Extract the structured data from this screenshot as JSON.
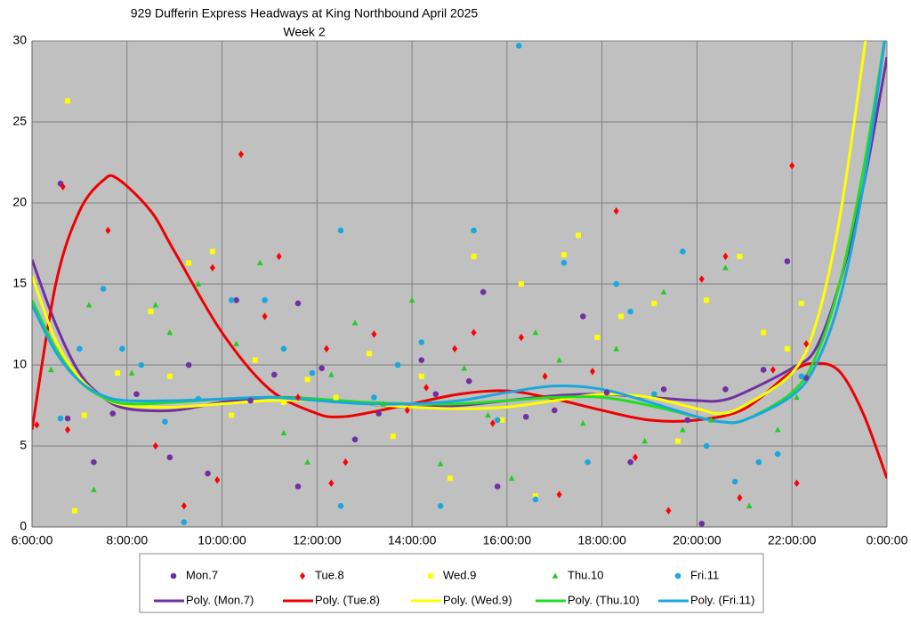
{
  "chart_data": {
    "type": "scatter",
    "title": "929 Dufferin Express Headways at King Northbound April 2025",
    "subtitle": "Week 2",
    "xlim": [
      6,
      24
    ],
    "xticks": [
      {
        "value": 6,
        "label": "6:00:00"
      },
      {
        "value": 8,
        "label": "8:00:00"
      },
      {
        "value": 10,
        "label": "10:00:00"
      },
      {
        "value": 12,
        "label": "12:00:00"
      },
      {
        "value": 14,
        "label": "14:00:00"
      },
      {
        "value": 16,
        "label": "16:00:00"
      },
      {
        "value": 18,
        "label": "18:00:00"
      },
      {
        "value": 20,
        "label": "20:00:00"
      },
      {
        "value": 22,
        "label": "22:00:00"
      },
      {
        "value": 24,
        "label": "0:00:00"
      }
    ],
    "ylim": [
      0,
      30
    ],
    "yticks": [
      0,
      5,
      10,
      15,
      20,
      25,
      30
    ],
    "grid": true,
    "legend": "bottom",
    "series": [
      {
        "name": "Mon.7",
        "color": "#7030a0",
        "marker": "circle",
        "x": [
          6.6,
          6.75,
          7.3,
          7.7,
          8.2,
          8.9,
          9.3,
          9.7,
          10.3,
          10.6,
          11.1,
          11.6,
          11.6,
          12.1,
          12.8,
          13.3,
          14.2,
          14.5,
          15.2,
          15.5,
          15.8,
          16.4,
          17,
          17.6,
          18.1,
          18.6,
          19.3,
          19.8,
          20.1,
          20.6,
          21.4,
          21.9,
          22.3
        ],
        "values": [
          21.2,
          6.7,
          4,
          7,
          8.2,
          4.3,
          10,
          3.3,
          14,
          7.8,
          9.4,
          2.5,
          13.8,
          9.8,
          5.4,
          7,
          10.3,
          8.2,
          9,
          14.5,
          2.5,
          6.8,
          7.2,
          13,
          8.3,
          4,
          8.5,
          6.6,
          0.2,
          8.5,
          9.7,
          16.4,
          9.2
        ]
      },
      {
        "name": "Tue.8",
        "color": "#ff0000",
        "marker": "diamond",
        "x": [
          6.1,
          6.65,
          6.75,
          7.6,
          8.6,
          9.2,
          9.8,
          9.9,
          10.4,
          10.9,
          11.2,
          11.6,
          12.2,
          12.3,
          12.6,
          13.2,
          13.9,
          14.3,
          14.9,
          15.3,
          15.7,
          16.3,
          16.8,
          17.1,
          17.8,
          18.3,
          18.7,
          19.4,
          20.1,
          20.6,
          20.9,
          21.6,
          22,
          22.1,
          22.3
        ],
        "values": [
          6.3,
          21,
          6,
          18.3,
          5,
          1.3,
          16,
          2.9,
          23,
          13,
          16.7,
          8,
          11,
          2.7,
          4,
          11.9,
          7.2,
          8.6,
          11,
          12,
          6.4,
          11.7,
          9.3,
          2,
          9.6,
          19.5,
          4.3,
          1,
          15.3,
          16.7,
          1.8,
          9.7,
          22.3,
          2.7,
          11.3
        ]
      },
      {
        "name": "Wed.9",
        "color": "#ffff00",
        "marker": "square",
        "x": [
          6.75,
          6.9,
          7.1,
          7.8,
          8.5,
          8.9,
          9.3,
          9.8,
          10.2,
          10.7,
          11.3,
          11.8,
          12.4,
          13.1,
          13.6,
          14.2,
          14.8,
          15.3,
          15.9,
          16.3,
          16.6,
          17.2,
          17.5,
          17.9,
          18.4,
          19.1,
          19.6,
          20.2,
          20.9,
          21.4,
          21.9,
          22.2
        ],
        "values": [
          26.3,
          1,
          6.9,
          9.5,
          13.3,
          9.3,
          16.3,
          17,
          6.9,
          10.3,
          7.7,
          9.1,
          8,
          10.7,
          5.6,
          9.3,
          3,
          16.7,
          6.6,
          15,
          1.9,
          16.8,
          18,
          11.7,
          13,
          13.8,
          5.3,
          14,
          16.7,
          12,
          11,
          13.8
        ]
      },
      {
        "name": "Thu.10",
        "color": "#22cc22",
        "marker": "triangle",
        "x": [
          6.4,
          7.2,
          7.3,
          8.1,
          8.6,
          8.9,
          9.5,
          10.3,
          10.8,
          11.3,
          11.8,
          12.3,
          12.8,
          13.4,
          14,
          14.6,
          15.1,
          15.6,
          16.1,
          16.6,
          17.1,
          17.6,
          18.3,
          18.9,
          19.3,
          19.7,
          20.3,
          20.6,
          21.1,
          21.7,
          22.1
        ],
        "values": [
          9.7,
          13.7,
          2.3,
          9.5,
          13.7,
          12,
          15,
          11.3,
          16.3,
          5.8,
          4,
          9.4,
          12.6,
          7.6,
          14,
          3.9,
          9.8,
          6.9,
          3,
          12,
          10.3,
          6.4,
          11,
          5.3,
          14.5,
          6,
          6.6,
          16,
          1.3,
          6,
          8
        ]
      },
      {
        "name": "Fri.11",
        "color": "#1aa7e0",
        "marker": "circle",
        "x": [
          6.6,
          7,
          7.5,
          7.9,
          8.3,
          8.8,
          9.2,
          9.5,
          10.2,
          10.9,
          11.3,
          11.9,
          12.5,
          12.5,
          13.2,
          13.7,
          14.2,
          14.6,
          15.3,
          15.8,
          16.25,
          16.6,
          17.2,
          17.7,
          18.3,
          18.6,
          19.1,
          19.7,
          20.2,
          20.8,
          21.3,
          21.7,
          22.2
        ],
        "values": [
          6.7,
          11,
          14.7,
          11,
          10,
          6.5,
          0.3,
          7.9,
          14,
          14,
          11,
          9.5,
          18.3,
          1.3,
          8,
          10,
          11.4,
          1.3,
          18.3,
          6.6,
          29.7,
          1.7,
          16.3,
          4,
          15,
          13.3,
          8.2,
          17,
          5,
          2.8,
          4,
          4.5,
          9.3
        ]
      }
    ],
    "trendlines": [
      {
        "name": "Poly. (Mon.7)",
        "color": "#7030a0",
        "x": [
          6,
          6.5,
          7,
          7.5,
          8,
          9,
          10,
          11,
          12,
          13,
          14,
          15,
          16,
          17,
          18,
          19,
          20,
          20.5,
          21,
          22,
          22.5,
          23,
          23.5,
          24
        ],
        "values": [
          16.5,
          12.5,
          9.5,
          8,
          7.3,
          7.2,
          7.7,
          8,
          7.9,
          7.6,
          7.4,
          7.5,
          7.8,
          8.1,
          8.2,
          8,
          7.8,
          7.8,
          8.3,
          9.8,
          11,
          15,
          21,
          29
        ]
      },
      {
        "name": "Poly. (Tue.8)",
        "color": "#ee0000",
        "x": [
          6,
          6.5,
          7,
          7.5,
          7.8,
          8.5,
          9,
          10,
          11,
          12,
          12.5,
          13,
          14,
          15,
          16,
          17,
          18,
          19,
          20,
          21,
          22,
          22.5,
          23,
          23.5,
          24
        ],
        "values": [
          6,
          15,
          19.5,
          21.4,
          21.5,
          19.5,
          17,
          12,
          8.5,
          7,
          6.8,
          7,
          7.6,
          8.2,
          8.4,
          7.9,
          7.2,
          6.6,
          6.6,
          7.3,
          9.6,
          10.1,
          9.6,
          7,
          3
        ]
      },
      {
        "name": "Poly. (Wed.9)",
        "color": "#ffff00",
        "x": [
          6,
          6.5,
          7,
          7.5,
          8,
          9,
          10,
          11,
          12,
          13,
          14,
          15,
          16,
          17,
          18,
          19,
          20,
          20.5,
          21,
          22,
          22.5,
          23,
          23.5,
          24
        ],
        "values": [
          15.5,
          11.5,
          9.2,
          8,
          7.5,
          7.4,
          7.6,
          7.8,
          7.8,
          7.6,
          7.4,
          7.3,
          7.4,
          7.8,
          8.2,
          8,
          7.3,
          7,
          7.5,
          9.5,
          12.5,
          19,
          29,
          40
        ]
      },
      {
        "name": "Poly. (Thu.10)",
        "color": "#22dd22",
        "x": [
          6,
          6.5,
          7,
          7.5,
          8,
          9,
          10,
          11,
          12,
          13,
          14,
          15,
          16,
          17,
          18,
          19,
          20,
          20.5,
          21,
          22,
          22.5,
          23,
          23.5,
          24
        ],
        "values": [
          14,
          11,
          9,
          8,
          7.6,
          7.7,
          7.9,
          8,
          7.9,
          7.7,
          7.6,
          7.6,
          7.8,
          8,
          8,
          7.5,
          6.8,
          6.5,
          6.6,
          8.3,
          10.5,
          15,
          22,
          31
        ]
      },
      {
        "name": "Poly. (Fri.11)",
        "color": "#1aa7e0",
        "x": [
          6,
          6.5,
          7,
          7.5,
          8,
          9,
          10,
          11,
          12,
          13,
          14,
          15,
          16,
          17,
          18,
          19,
          20,
          20.5,
          21,
          22,
          22.5,
          23,
          23.5,
          24
        ],
        "values": [
          13.7,
          10.8,
          9,
          8.1,
          7.8,
          7.8,
          7.9,
          8,
          7.8,
          7.6,
          7.6,
          7.8,
          8.3,
          8.7,
          8.5,
          7.7,
          6.8,
          6.5,
          6.6,
          8.1,
          10,
          14,
          21,
          31
        ]
      }
    ]
  }
}
